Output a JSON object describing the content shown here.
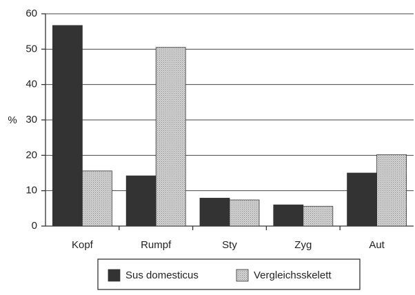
{
  "chart_data": {
    "type": "bar",
    "ylabel": "%",
    "categories": [
      "Kopf",
      "Rumpf",
      "Sty",
      "Zyg",
      "Aut"
    ],
    "series": [
      {
        "name": "Sus domesticus",
        "color": "#333333",
        "values": [
          56.7,
          14.2,
          7.9,
          6.0,
          15.0
        ]
      },
      {
        "name": "Vergleichsskelett",
        "color": "#d4d4d4",
        "values": [
          15.6,
          50.5,
          7.4,
          5.6,
          20.2
        ]
      }
    ],
    "ylim": [
      0,
      60
    ],
    "yticks": [
      0,
      10,
      20,
      30,
      40,
      50,
      60
    ],
    "grid": true,
    "legend": "bottom"
  }
}
